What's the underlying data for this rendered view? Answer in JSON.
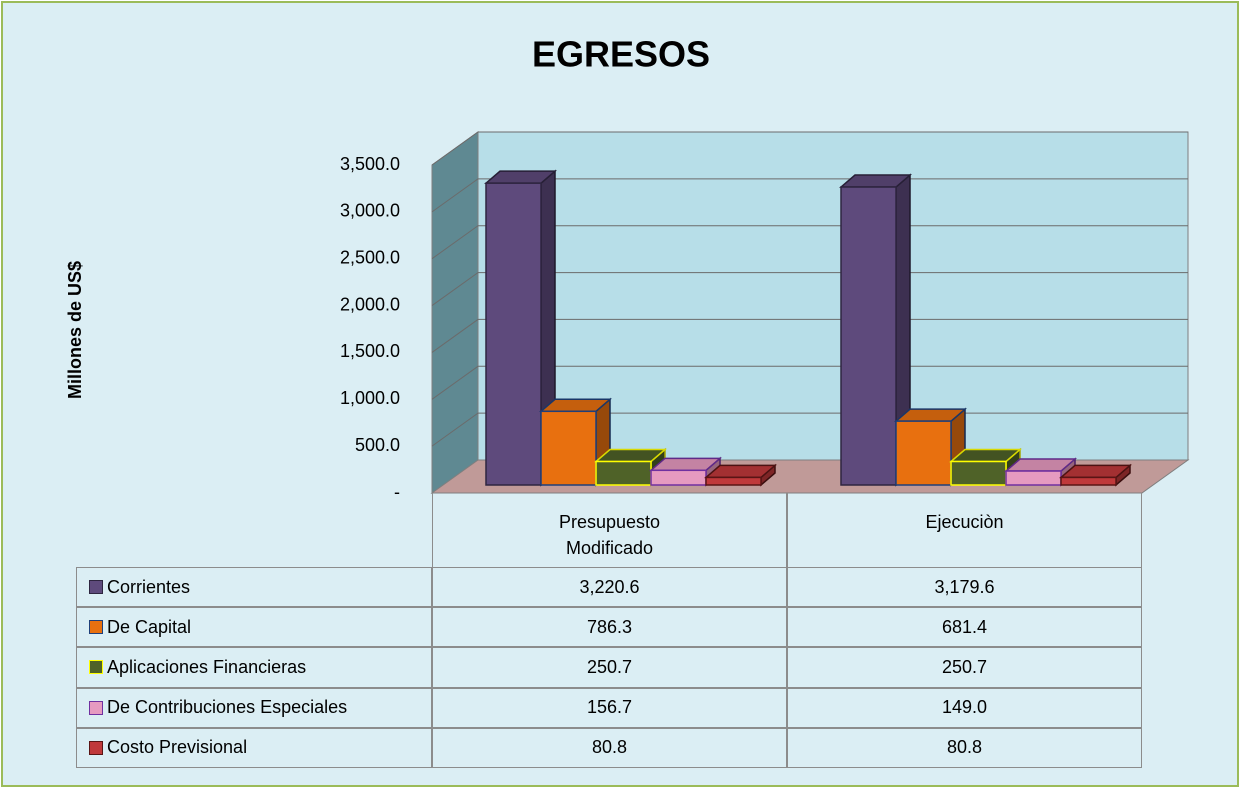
{
  "chart_data": {
    "type": "bar3d",
    "title": "EGRESOS",
    "ylabel": "Millones de US$",
    "categories": [
      "Presupuesto Modificado",
      "Ejecuciòn"
    ],
    "series": [
      {
        "name": "Corrientes",
        "color": "#5e4a7c",
        "edgecolor": "#2e2540",
        "values": [
          3220.6,
          3179.6
        ],
        "value_labels": [
          "3,220.6",
          "3,179.6"
        ]
      },
      {
        "name": "De Capital",
        "color": "#e8700f",
        "edgecolor": "#1f3f7a",
        "values": [
          786.3,
          681.4
        ],
        "value_labels": [
          "786.3",
          "681.4"
        ]
      },
      {
        "name": "Aplicaciones Financieras",
        "color": "#4f6228",
        "edgecolor": "#ffff00",
        "values": [
          250.7,
          250.7
        ],
        "value_labels": [
          "250.7",
          "250.7"
        ]
      },
      {
        "name": "De Contribuciones Especiales",
        "color": "#e69ac0",
        "edgecolor": "#7030a0",
        "values": [
          156.7,
          149.0
        ],
        "value_labels": [
          "156.7",
          "149.0"
        ]
      },
      {
        "name": "Costo Previsional",
        "color": "#c0393b",
        "edgecolor": "#5a1515",
        "values": [
          80.8,
          80.8
        ],
        "value_labels": [
          "80.8",
          "80.8"
        ]
      }
    ],
    "ylim": [
      0,
      3500
    ],
    "yticks": [
      {
        "value": 0,
        "label": "-"
      },
      {
        "value": 500,
        "label": "500.0"
      },
      {
        "value": 1000,
        "label": "1,000.0"
      },
      {
        "value": 1500,
        "label": "1,500.0"
      },
      {
        "value": 2000,
        "label": "2,000.0"
      },
      {
        "value": 2500,
        "label": "2,500.0"
      },
      {
        "value": 3000,
        "label": "3,000.0"
      },
      {
        "value": 3500,
        "label": "3,500.0"
      }
    ],
    "grid": true
  }
}
